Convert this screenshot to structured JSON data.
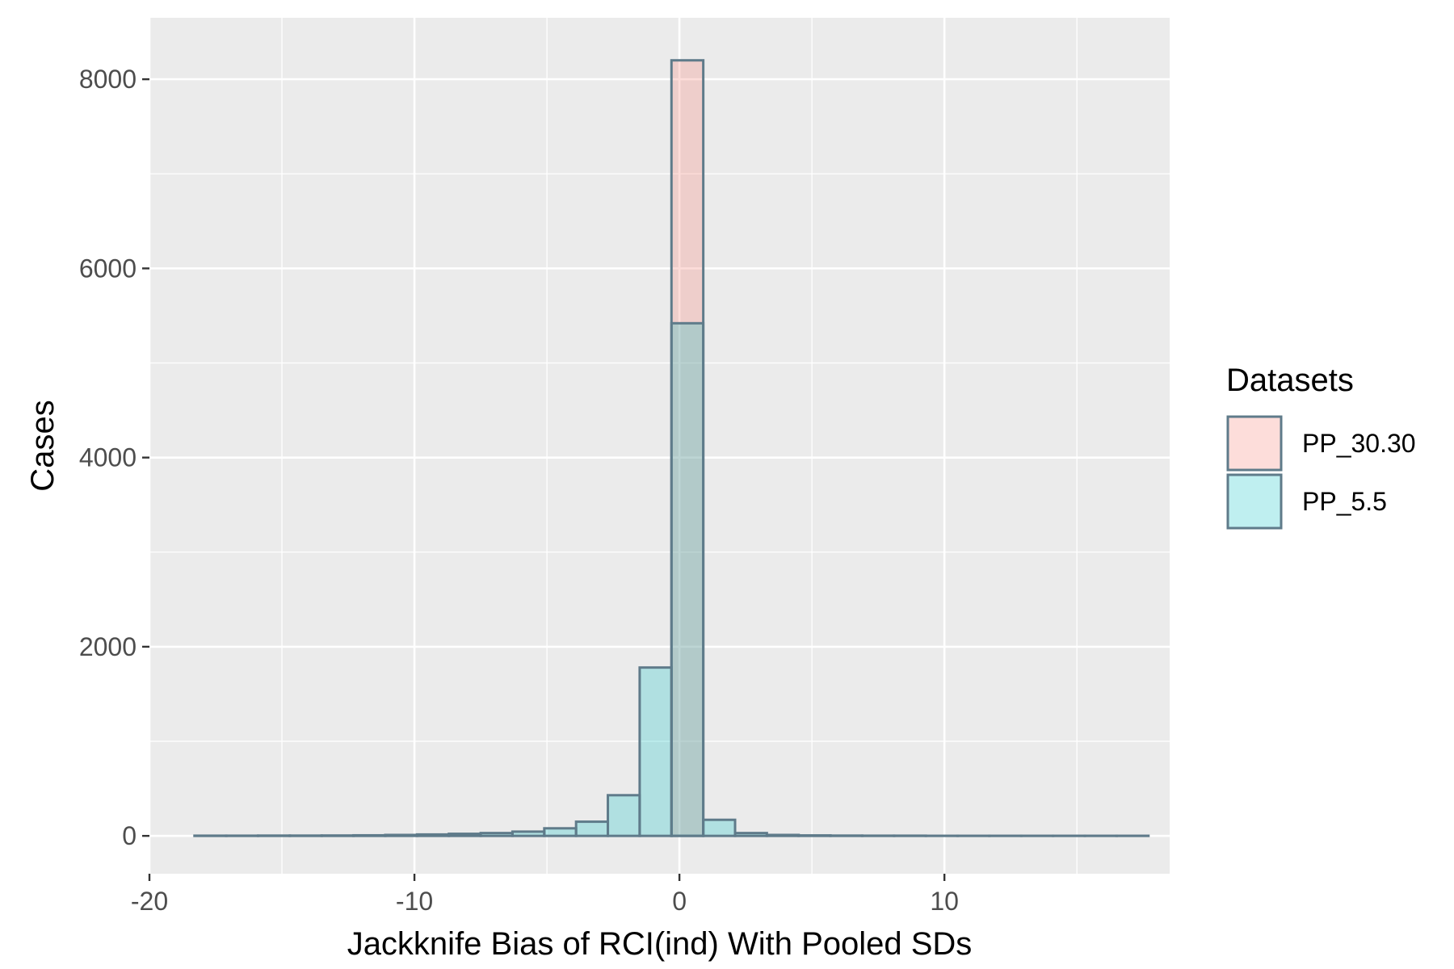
{
  "chart_data": {
    "type": "bar",
    "subtype": "histogram",
    "title": "",
    "xlabel": "Jackknife Bias of RCI(ind) With Pooled SDs",
    "ylabel": "Cases",
    "xlim": [
      -20,
      18.5
    ],
    "ylim": [
      -400,
      8650
    ],
    "x_ticks": [
      -20,
      -10,
      0,
      10
    ],
    "x_tick_labels": [
      "-20",
      "-10",
      "0",
      "10"
    ],
    "y_ticks": [
      0,
      2000,
      4000,
      6000,
      8000
    ],
    "y_tick_labels": [
      "0",
      "2000",
      "4000",
      "6000",
      "8000"
    ],
    "grid": true,
    "bin_edges": [
      -18.3,
      -17.1,
      -15.9,
      -14.7,
      -13.5,
      -12.3,
      -11.1,
      -9.9,
      -8.7,
      -7.5,
      -6.3,
      -5.1,
      -3.9,
      -2.7,
      -1.5,
      -0.3,
      0.9,
      2.1,
      3.3,
      4.5,
      5.7,
      6.9,
      8.1,
      9.3,
      10.5,
      11.7,
      12.9,
      14.1,
      15.3,
      16.5,
      17.7
    ],
    "series": [
      {
        "name": "PP_30.30",
        "color": "#F8766D",
        "values": [
          0,
          0,
          0,
          0,
          0,
          0,
          0,
          0,
          0,
          0,
          0,
          0,
          0,
          0,
          0,
          8200,
          0,
          0,
          0,
          0,
          0,
          0,
          0,
          0,
          0,
          0,
          0,
          0,
          0,
          0
        ]
      },
      {
        "name": "PP_5.5",
        "color": "#00BFC4",
        "values": [
          2,
          2,
          3,
          3,
          4,
          6,
          10,
          15,
          22,
          30,
          45,
          80,
          150,
          430,
          1780,
          5420,
          170,
          30,
          10,
          5,
          3,
          2,
          2,
          1,
          1,
          1,
          1,
          1,
          1,
          1
        ]
      }
    ],
    "fill_alpha": 0.25,
    "outline_color": "#5F7B8A",
    "legend": {
      "title": "Datasets",
      "position": "right"
    }
  }
}
